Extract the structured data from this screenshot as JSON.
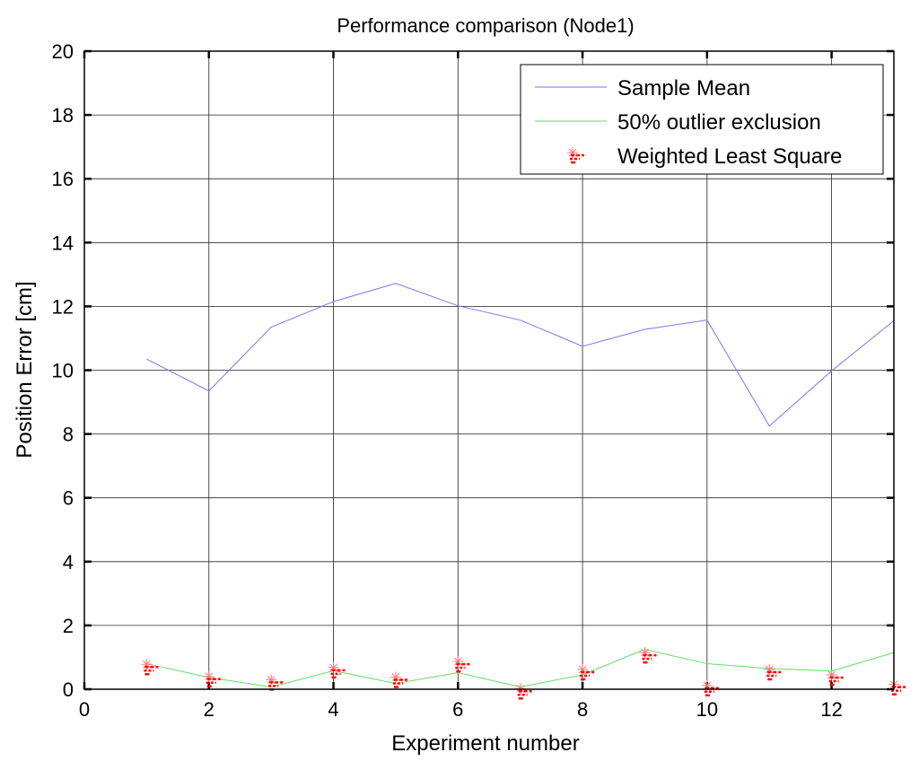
{
  "chart_data": {
    "type": "line",
    "title": "Performance comparison (Node1)",
    "xlabel": "Experiment number",
    "ylabel": "Position Error [cm]",
    "xlim": [
      0,
      13
    ],
    "ylim": [
      0,
      20
    ],
    "xticks": [
      0,
      2,
      4,
      6,
      8,
      10,
      12
    ],
    "yticks": [
      0,
      2,
      4,
      6,
      8,
      10,
      12,
      14,
      16,
      18,
      20
    ],
    "grid": true,
    "legend_position": "top-right",
    "x": [
      1,
      2,
      3,
      4,
      5,
      6,
      7,
      8,
      9,
      10,
      11,
      12,
      13
    ],
    "series": [
      {
        "name": "Sample Mean",
        "style": "line",
        "color": "#7777ee",
        "values": [
          10.35,
          9.35,
          11.35,
          12.15,
          12.72,
          12.02,
          11.57,
          10.75,
          11.28,
          11.57,
          8.25,
          9.98,
          11.55
        ]
      },
      {
        "name": "50% outlier exclusion",
        "style": "line",
        "color": "#66dd66",
        "values": [
          0.8,
          0.37,
          0.07,
          0.58,
          0.18,
          0.52,
          0.07,
          0.45,
          1.25,
          0.8,
          0.65,
          0.57,
          1.15
        ]
      },
      {
        "name": "Weighted Least Square",
        "style": "marker",
        "color": "#ff0000",
        "values": [
          0.78,
          0.4,
          0.3,
          0.68,
          0.38,
          0.87,
          0.02,
          0.62,
          1.15,
          0.12,
          0.62,
          0.45,
          0.15
        ]
      }
    ]
  }
}
